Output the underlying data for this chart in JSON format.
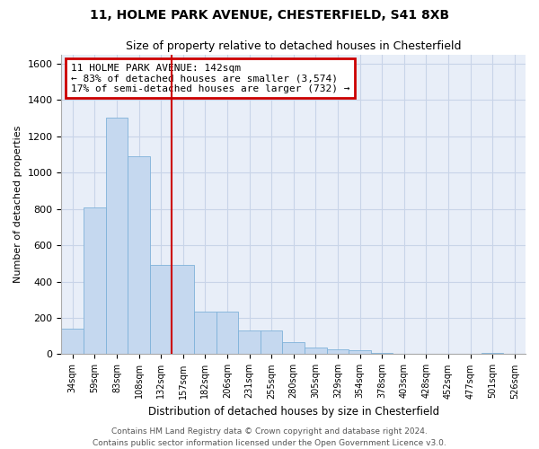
{
  "title": "11, HOLME PARK AVENUE, CHESTERFIELD, S41 8XB",
  "subtitle": "Size of property relative to detached houses in Chesterfield",
  "xlabel": "Distribution of detached houses by size in Chesterfield",
  "ylabel": "Number of detached properties",
  "footer1": "Contains HM Land Registry data © Crown copyright and database right 2024.",
  "footer2": "Contains public sector information licensed under the Open Government Licence v3.0.",
  "categories": [
    "34sqm",
    "59sqm",
    "83sqm",
    "108sqm",
    "132sqm",
    "157sqm",
    "182sqm",
    "206sqm",
    "231sqm",
    "255sqm",
    "280sqm",
    "305sqm",
    "329sqm",
    "354sqm",
    "378sqm",
    "403sqm",
    "428sqm",
    "452sqm",
    "477sqm",
    "501sqm",
    "526sqm"
  ],
  "values": [
    140,
    810,
    1300,
    1090,
    490,
    490,
    235,
    235,
    130,
    130,
    65,
    35,
    25,
    20,
    5,
    0,
    0,
    0,
    0,
    5,
    0
  ],
  "bar_color": "#c5d8ef",
  "bar_edge_color": "#7fb2d9",
  "annotation_text": "11 HOLME PARK AVENUE: 142sqm\n← 83% of detached houses are smaller (3,574)\n17% of semi-detached houses are larger (732) →",
  "annotation_box_color": "#ffffff",
  "annotation_box_edge_color": "#cc0000",
  "red_line_color": "#cc0000",
  "red_line_index": 4,
  "ylim": [
    0,
    1650
  ],
  "yticks": [
    0,
    200,
    400,
    600,
    800,
    1000,
    1200,
    1400,
    1600
  ],
  "grid_color": "#c8d4e8",
  "plot_bg_color": "#e8eef8",
  "fig_bg_color": "#ffffff"
}
